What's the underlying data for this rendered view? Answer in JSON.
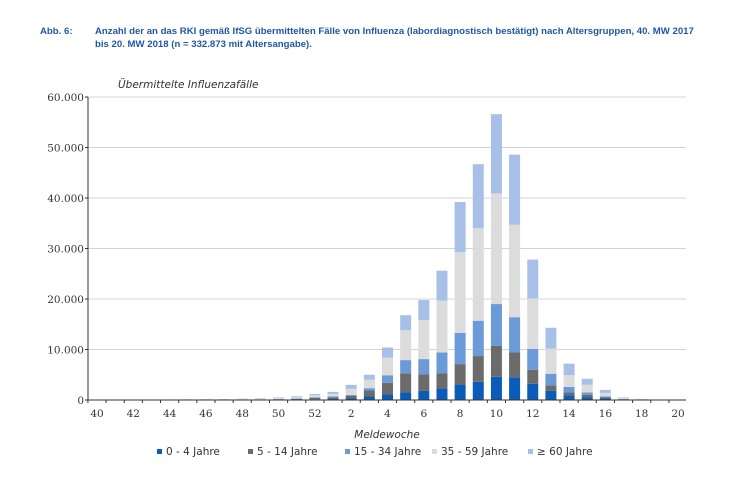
{
  "figure": {
    "label": "Abb. 6:",
    "caption": "Anzahl der an das RKI gemäß IfSG übermittelten Fälle von Influenza (labordiagnostisch bestätigt) nach Altersgruppen, 40. MW 2017 bis 20. MW 2018 (n = 332.873 mit Altersangabe)."
  },
  "chart_data": {
    "type": "bar",
    "stacked": true,
    "title": "",
    "xlabel": "Meldewoche",
    "ylabel": "Übermittelte Influenzafälle",
    "ylim": [
      0,
      60000
    ],
    "yticks": [
      0,
      10000,
      20000,
      30000,
      40000,
      50000,
      60000
    ],
    "ytick_labels": [
      "0",
      "10.000",
      "20.000",
      "30.000",
      "40.000",
      "50.000",
      "60.000"
    ],
    "grid": "horizontal",
    "legend_position": "bottom",
    "categories": [
      "40",
      "41",
      "42",
      "43",
      "44",
      "45",
      "46",
      "47",
      "48",
      "49",
      "50",
      "51",
      "52",
      "1",
      "2",
      "3",
      "4",
      "5",
      "6",
      "7",
      "8",
      "9",
      "10",
      "11",
      "12",
      "13",
      "14",
      "15",
      "16",
      "17",
      "18",
      "19",
      "20"
    ],
    "xtick_labels": [
      "40",
      "42",
      "44",
      "46",
      "48",
      "50",
      "52",
      "2",
      "4",
      "6",
      "8",
      "10",
      "12",
      "14",
      "16",
      "18",
      "20"
    ],
    "series": [
      {
        "name": "0 - 4 Jahre",
        "color": "#0a5cb8",
        "values": [
          10,
          10,
          10,
          10,
          15,
          15,
          20,
          25,
          30,
          40,
          60,
          90,
          150,
          200,
          300,
          700,
          1100,
          1500,
          1800,
          2300,
          3100,
          3600,
          4600,
          4500,
          3200,
          1800,
          900,
          500,
          300,
          80,
          30,
          15,
          10
        ]
      },
      {
        "name": "5 - 14 Jahre",
        "color": "#6b6b6b",
        "values": [
          10,
          10,
          10,
          10,
          15,
          20,
          20,
          30,
          40,
          60,
          90,
          140,
          250,
          300,
          500,
          1200,
          2300,
          3800,
          3300,
          3000,
          4000,
          5100,
          6100,
          4900,
          2800,
          1100,
          600,
          500,
          200,
          80,
          30,
          15,
          10
        ]
      },
      {
        "name": "15 - 34 Jahre",
        "color": "#6b9ad8",
        "values": [
          10,
          10,
          10,
          15,
          15,
          20,
          25,
          30,
          40,
          50,
          70,
          100,
          150,
          200,
          200,
          450,
          1500,
          2600,
          3000,
          4100,
          6200,
          7000,
          8300,
          7000,
          4100,
          2300,
          1100,
          500,
          200,
          60,
          25,
          15,
          10
        ]
      },
      {
        "name": "35 - 59 Jahre",
        "color": "#dcdcdc",
        "values": [
          30,
          30,
          30,
          35,
          40,
          50,
          60,
          70,
          90,
          120,
          170,
          250,
          400,
          500,
          1200,
          1650,
          3500,
          5900,
          7700,
          10300,
          16000,
          18300,
          21900,
          18300,
          10000,
          5000,
          2300,
          1500,
          700,
          150,
          60,
          30,
          20
        ]
      },
      {
        "name": "≥ 60 Jahre",
        "color": "#a8c0e8",
        "values": [
          20,
          20,
          25,
          25,
          30,
          35,
          40,
          45,
          60,
          80,
          110,
          170,
          250,
          400,
          800,
          1000,
          2000,
          3000,
          4000,
          5900,
          9900,
          12700,
          15700,
          13900,
          7700,
          4100,
          2300,
          1200,
          600,
          130,
          50,
          25,
          15
        ]
      }
    ]
  }
}
